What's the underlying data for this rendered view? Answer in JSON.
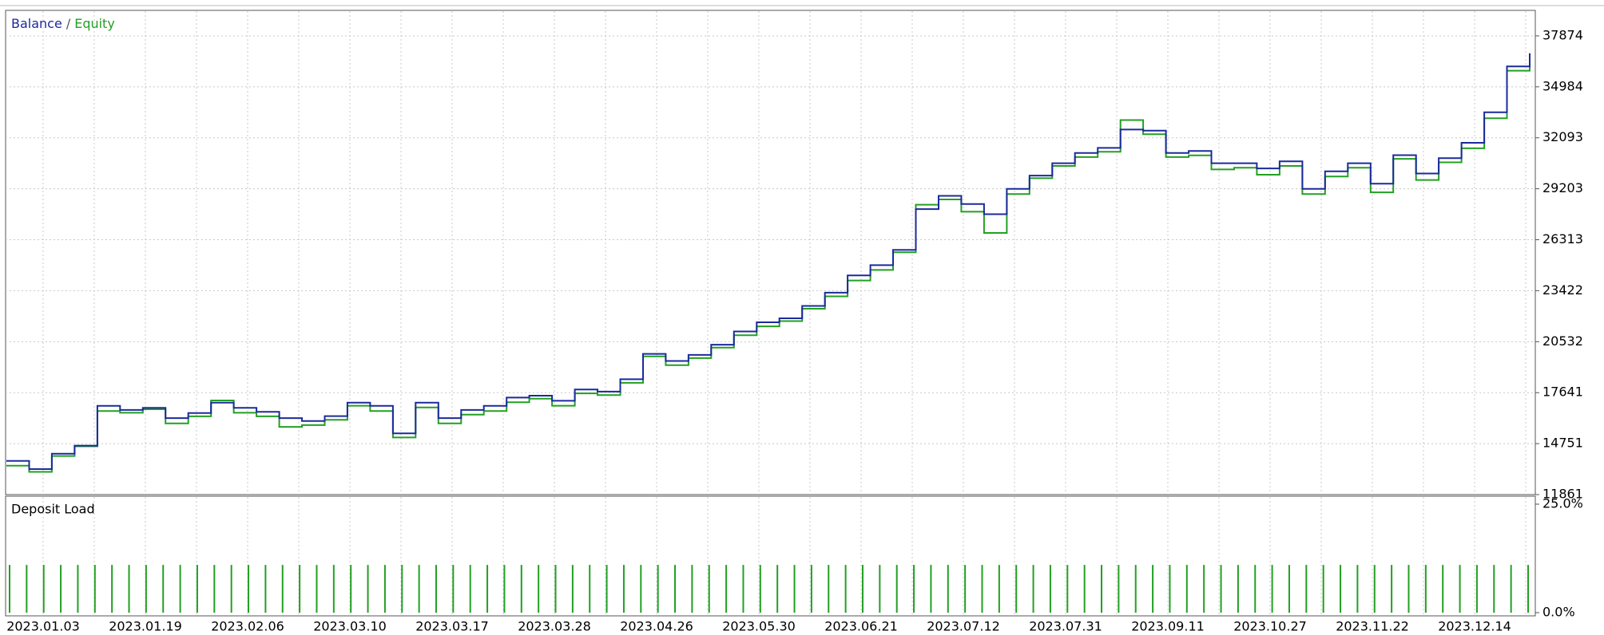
{
  "chart_data": [
    {
      "type": "line",
      "legend_separator": "/",
      "series": [
        {
          "name": "Balance",
          "color": "#1c2a9c",
          "values": [
            13770,
            13310,
            14180,
            14640,
            16890,
            16660,
            16780,
            16200,
            16490,
            17070,
            16780,
            16550,
            16200,
            16030,
            16310,
            17070,
            16890,
            15330,
            17070,
            16200,
            16660,
            16890,
            17360,
            17470,
            17180,
            17820,
            17700,
            18400,
            19840,
            19440,
            19780,
            20360,
            21110,
            21630,
            21860,
            22560,
            23310,
            24290,
            24870,
            25740,
            28050,
            28800,
            28340,
            27760,
            29200,
            29950,
            30650,
            31230,
            31520,
            32560,
            32500,
            31230,
            31350,
            30650,
            30650,
            30360,
            30760,
            29200,
            30190,
            30650,
            29490,
            31110,
            30070,
            30940,
            31810,
            33540,
            36140,
            36890
          ]
        },
        {
          "name": "Equity",
          "color": "#22a022",
          "values": [
            13500,
            13150,
            14050,
            14600,
            16600,
            16500,
            16700,
            15900,
            16300,
            17200,
            16500,
            16300,
            15700,
            15800,
            16100,
            16900,
            16600,
            15100,
            16800,
            15900,
            16400,
            16600,
            17100,
            17300,
            16900,
            17600,
            17500,
            18200,
            19700,
            19200,
            19600,
            20200,
            20900,
            21400,
            21700,
            22400,
            23100,
            24000,
            24600,
            25600,
            28300,
            28600,
            27900,
            26700,
            28900,
            29800,
            30500,
            31000,
            31300,
            33100,
            32300,
            31000,
            31100,
            30300,
            30400,
            30000,
            30500,
            28900,
            29900,
            30400,
            29000,
            30900,
            29700,
            30700,
            31500,
            33200,
            35900,
            36700
          ]
        }
      ],
      "ylim": [
        11861,
        39319
      ],
      "yticks": [
        11861,
        14751,
        17641,
        20532,
        23422,
        26313,
        29203,
        32093,
        34984,
        37874
      ],
      "grid": true
    },
    {
      "type": "bar",
      "title": "Deposit Load",
      "color": "#22a022",
      "values": [
        11,
        11,
        11,
        11,
        11,
        11,
        11,
        11,
        11,
        11,
        11,
        11,
        11,
        11,
        11,
        11,
        11,
        11,
        11,
        11,
        11,
        11,
        11,
        11,
        11,
        11,
        11,
        11,
        11,
        11,
        11,
        11,
        11,
        11,
        11,
        11,
        11,
        11,
        11,
        11,
        11,
        11,
        11,
        11,
        11,
        11,
        11,
        11,
        11,
        11,
        11,
        11,
        11,
        11,
        11,
        11,
        11,
        11,
        11,
        11,
        11,
        11,
        11,
        11,
        11,
        11,
        11,
        11,
        11,
        11,
        11,
        11,
        11,
        11,
        11,
        11,
        11,
        11,
        11,
        11,
        11,
        11,
        11,
        11,
        11,
        11,
        11,
        11,
        11,
        11
      ],
      "ylim": [
        0,
        25
      ],
      "yticks": [
        {
          "value": 0,
          "label": "0.0%"
        },
        {
          "value": 25,
          "label": "25.0%"
        }
      ],
      "xtick_labels": [
        "2023.01.03",
        "2023.01.19",
        "2023.02.06",
        "2023.03.10",
        "2023.03.17",
        "2023.03.28",
        "2023.04.26",
        "2023.05.30",
        "2023.06.21",
        "2023.07.12",
        "2023.07.31",
        "2023.09.11",
        "2023.10.27",
        "2023.11.22",
        "2023.12.14"
      ],
      "grid": true
    }
  ]
}
